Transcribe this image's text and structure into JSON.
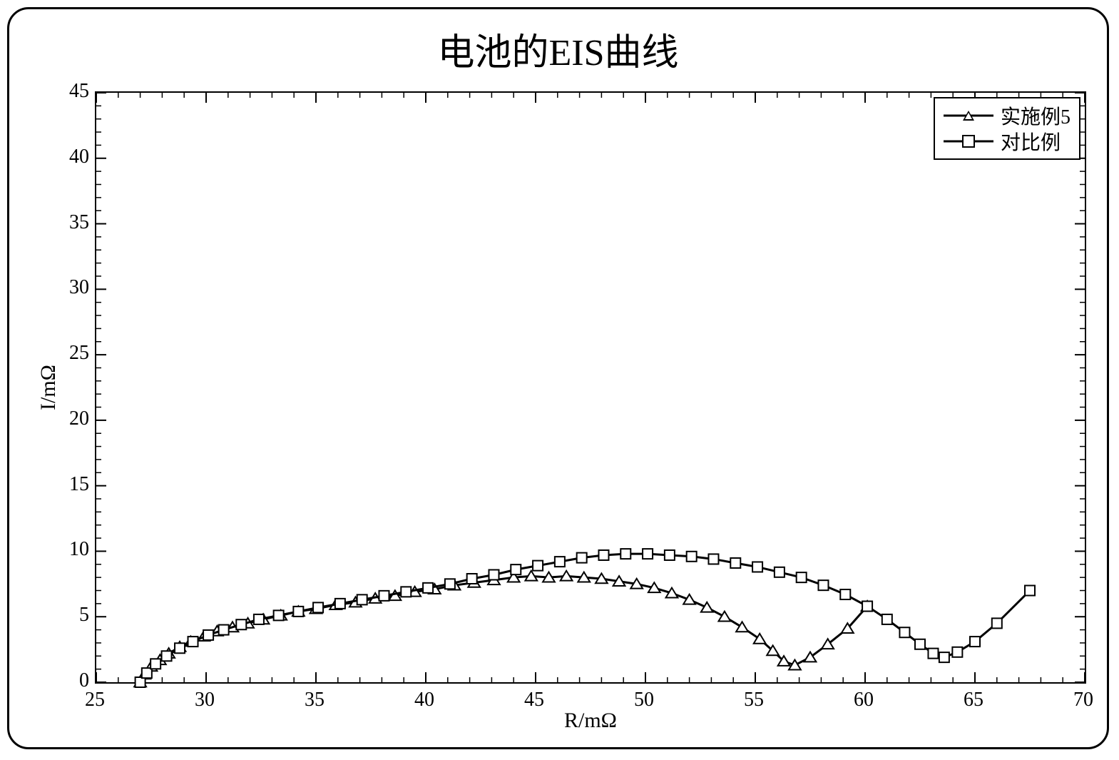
{
  "chart": {
    "type": "line",
    "title": "电池的EIS曲线",
    "title_fontsize": 52,
    "xlabel": "R/mΩ",
    "ylabel": "I/mΩ",
    "label_fontsize": 30,
    "background_color": "#ffffff",
    "border_color": "#000000",
    "border_radius": 30,
    "plot_border_color": "#000000",
    "tick_fontsize": 28,
    "xlim": [
      25,
      70
    ],
    "ylim": [
      0,
      45
    ],
    "xtick_step": 5,
    "ytick_step": 5,
    "minor_ticks": true,
    "minor_tick_count": 5,
    "line_width": 3,
    "line_color": "#000000",
    "marker_size": 14,
    "marker_edge_color": "#000000",
    "marker_face_color": "#ffffff",
    "legend": {
      "position": "top-right",
      "border_color": "#000000",
      "background_color": "#ffffff",
      "fontsize": 28,
      "items": [
        {
          "label": "实施例5",
          "marker": "triangle"
        },
        {
          "label": "对比例",
          "marker": "square"
        }
      ]
    },
    "series": [
      {
        "name": "实施例5",
        "marker": "triangle",
        "x": [
          27.0,
          27.2,
          27.5,
          27.9,
          28.3,
          28.8,
          29.3,
          29.9,
          30.5,
          31.2,
          31.9,
          32.6,
          33.4,
          34.2,
          35.0,
          35.9,
          36.8,
          37.7,
          38.6,
          39.5,
          40.4,
          41.3,
          42.2,
          43.1,
          44.0,
          44.8,
          45.6,
          46.4,
          47.2,
          48.0,
          48.8,
          49.6,
          50.4,
          51.2,
          52.0,
          52.8,
          53.6,
          54.4,
          55.2,
          55.8,
          56.3,
          56.8,
          57.5,
          58.3,
          59.2,
          60.1
        ],
        "y": [
          0.0,
          0.6,
          1.2,
          1.7,
          2.2,
          2.7,
          3.1,
          3.5,
          3.9,
          4.2,
          4.5,
          4.8,
          5.1,
          5.4,
          5.6,
          5.9,
          6.1,
          6.4,
          6.6,
          6.9,
          7.1,
          7.4,
          7.6,
          7.8,
          8.0,
          8.1,
          8.0,
          8.1,
          8.0,
          7.9,
          7.7,
          7.5,
          7.2,
          6.8,
          6.3,
          5.7,
          5.0,
          4.2,
          3.3,
          2.4,
          1.6,
          1.3,
          1.9,
          2.9,
          4.1,
          5.8
        ]
      },
      {
        "name": "对比例",
        "marker": "square",
        "x": [
          27.0,
          27.3,
          27.7,
          28.2,
          28.8,
          29.4,
          30.1,
          30.8,
          31.6,
          32.4,
          33.3,
          34.2,
          35.1,
          36.1,
          37.1,
          38.1,
          39.1,
          40.1,
          41.1,
          42.1,
          43.1,
          44.1,
          45.1,
          46.1,
          47.1,
          48.1,
          49.1,
          50.1,
          51.1,
          52.1,
          53.1,
          54.1,
          55.1,
          56.1,
          57.1,
          58.1,
          59.1,
          60.1,
          61.0,
          61.8,
          62.5,
          63.1,
          63.6,
          64.2,
          65.0,
          66.0,
          67.5
        ],
        "y": [
          0.0,
          0.7,
          1.4,
          2.0,
          2.6,
          3.1,
          3.6,
          4.0,
          4.4,
          4.8,
          5.1,
          5.4,
          5.7,
          6.0,
          6.3,
          6.6,
          6.9,
          7.2,
          7.5,
          7.9,
          8.2,
          8.6,
          8.9,
          9.2,
          9.5,
          9.7,
          9.8,
          9.8,
          9.7,
          9.6,
          9.4,
          9.1,
          8.8,
          8.4,
          8.0,
          7.4,
          6.7,
          5.8,
          4.8,
          3.8,
          2.9,
          2.2,
          1.9,
          2.3,
          3.1,
          4.5,
          7.0
        ]
      }
    ]
  }
}
